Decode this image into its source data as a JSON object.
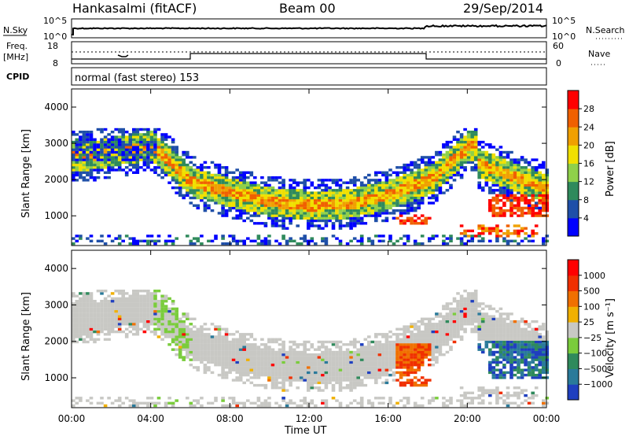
{
  "header": {
    "station": "Hankasalmi (fitACF)",
    "beam": "Beam 00",
    "date": "29/Sep/2014"
  },
  "strip": {
    "nsky_label": "N.Sky",
    "nsky_ticks": [
      "10^5",
      "10^0"
    ],
    "nsearch_label": "N.Search",
    "nsearch_ticks": [
      "10^5",
      "10^0"
    ],
    "freq_label": "Freq.",
    "freq_unit": "[MHz]",
    "freq_ticks": [
      "18",
      "8"
    ],
    "nave_label": "Nave",
    "nave_ticks": [
      "60",
      "0"
    ],
    "cpid_label": "CPID",
    "cpid_text": "normal (fast stereo) 153"
  },
  "chart_data": [
    {
      "type": "heatmap",
      "panel": "power",
      "ylabel": "Slant Range [km]",
      "xlabel": "Time UT",
      "xlim_hours": [
        0,
        24
      ],
      "ylim": [
        180,
        4500
      ],
      "x_ticks": [
        "00:00",
        "04:00",
        "08:00",
        "12:00",
        "16:00",
        "20:00",
        "00:00"
      ],
      "y_ticks": [
        1000,
        2000,
        3000,
        4000
      ],
      "colorbar": {
        "label": "Power [dB]",
        "ticks": [
          "4",
          "8",
          "12",
          "16",
          "20",
          "24",
          "28"
        ],
        "colors": [
          "#0000ff",
          "#1f4fa8",
          "#2f8a5c",
          "#8fd04a",
          "#f0e000",
          "#f0a000",
          "#f06000",
          "#ff0000"
        ]
      },
      "bands": [
        {
          "name": "echo band",
          "t": [
            0.5,
            4,
            6,
            8,
            10,
            12,
            14,
            16,
            17,
            18.2,
            19,
            20
          ],
          "range_km": [
            2600,
            2900,
            1900,
            1600,
            1350,
            1250,
            1300,
            1550,
            1750,
            2000,
            2400,
            2900
          ],
          "power_db": 20
        },
        {
          "name": "near-range clutter",
          "t": [
            0,
            24
          ],
          "range_km": [
            350,
            350
          ],
          "power_db": 8
        }
      ]
    },
    {
      "type": "heatmap",
      "panel": "velocity",
      "ylabel": "Slant Range [km]",
      "xlabel": "Time UT",
      "xlim_hours": [
        0,
        24
      ],
      "ylim": [
        180,
        4500
      ],
      "x_ticks": [
        "00:00",
        "04:00",
        "08:00",
        "12:00",
        "16:00",
        "20:00",
        "00:00"
      ],
      "y_ticks": [
        1000,
        2000,
        3000,
        4000
      ],
      "colorbar": {
        "label": "Velocity [m s⁻¹]",
        "ticks": [
          "1000",
          "500",
          "100",
          "25",
          "−25",
          "−100",
          "−500",
          "−1000"
        ],
        "colors": [
          "#1f3fbf",
          "#2a7a9a",
          "#2f8a5c",
          "#7acc3c",
          "#c8c8c4",
          "#f0b000",
          "#f07000",
          "#f03000",
          "#ff0000"
        ]
      }
    }
  ],
  "colors": {
    "ground_scatter": "#c8c8c4"
  }
}
